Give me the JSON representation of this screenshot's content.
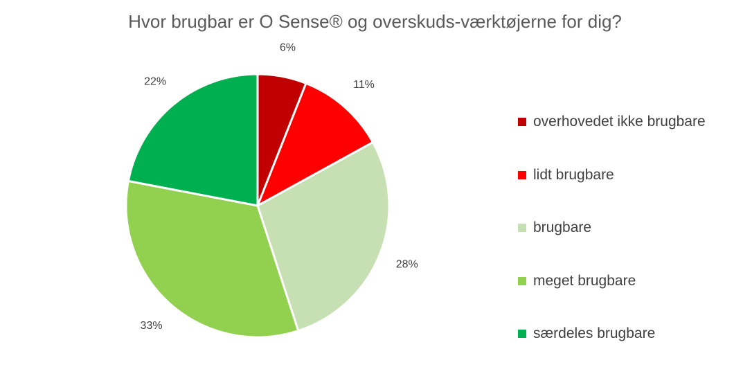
{
  "chart_data": {
    "type": "pie",
    "title": "Hvor brugbar er O Sense® og overskuds-værktøjerne for dig?",
    "categories": [
      "overhovedet ikke brugbare",
      "lidt brugbare",
      "brugbare",
      "meget brugbare",
      "særdeles brugbare"
    ],
    "values": [
      6,
      11,
      28,
      33,
      22
    ],
    "value_labels": [
      "6%",
      "11%",
      "28%",
      "33%",
      "22%"
    ],
    "colors": [
      "#C00000",
      "#FF0000",
      "#C6E0B4",
      "#92D050",
      "#00B050"
    ],
    "legend_position": "right"
  }
}
